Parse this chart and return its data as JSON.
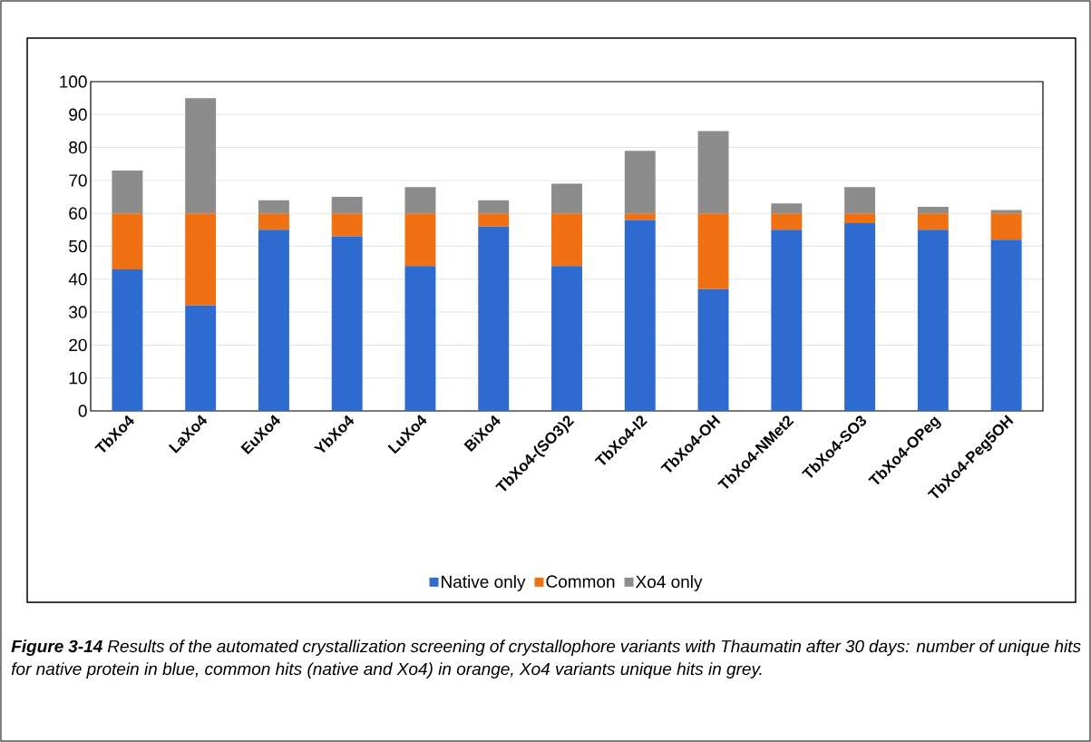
{
  "chart_data": {
    "type": "bar",
    "stacked": true,
    "categories": [
      "TbXo4",
      "LaXo4",
      "EuXo4",
      "YbXo4",
      "LuXo4",
      "BiXo4",
      "TbXo4-(SO3)2",
      "TbXo4-I2",
      "TbXo4-OH",
      "TbXo4-NMet2",
      "TbXo4-SO3",
      "TbXo4-OPeg",
      "TbXo4-Peg5OH"
    ],
    "series": [
      {
        "name": "Native only",
        "color": "#2e6bd0",
        "values": [
          43,
          32,
          55,
          53,
          44,
          56,
          44,
          58,
          37,
          55,
          57,
          55,
          52
        ]
      },
      {
        "name": "Common",
        "color": "#f07014",
        "values": [
          17,
          28,
          5,
          7,
          16,
          4,
          16,
          2,
          23,
          5,
          3,
          5,
          8
        ]
      },
      {
        "name": "Xo4 only",
        "color": "#8c8c8c",
        "values": [
          13,
          35,
          4,
          5,
          8,
          4,
          9,
          19,
          25,
          3,
          8,
          2,
          1
        ]
      }
    ],
    "ylim": [
      0,
      100
    ],
    "yticks": [
      0,
      10,
      20,
      30,
      40,
      50,
      60,
      70,
      80,
      90,
      100
    ],
    "grid": "y",
    "legend": "bottom",
    "annotations": [
      "**Figure 3-14** Results of the automated crystallization screening of crystallophore variants with Thaumatin after 30 days: number of unique hits for native protein in blue, common hits (native and Xo4) in orange, Xo4 variants unique hits in grey."
    ]
  }
}
